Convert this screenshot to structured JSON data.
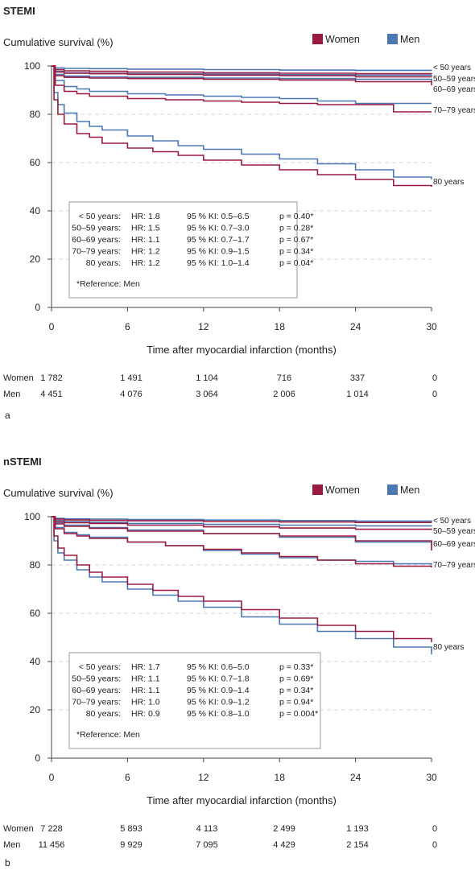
{
  "colors": {
    "women": "#9b1b3f",
    "men": "#4a78b5",
    "axis": "#444444",
    "grid": "#c8c8c8",
    "box": "#9a9a9a"
  },
  "chart_data": [
    {
      "type": "line",
      "panel_letter": "a",
      "title": "STEMI",
      "ylabel": "Cumulative survival (%)",
      "xlabel": "Time after myocardial infarction (months)",
      "xlim": [
        0,
        30
      ],
      "ylim": [
        0,
        100
      ],
      "xticks": [
        "0",
        "6",
        "12",
        "18",
        "24",
        "30"
      ],
      "yticks": [
        "0",
        "20",
        "40",
        "60",
        "80",
        "100"
      ],
      "grid": "dashed horizontal at 20, 40, 60, 80",
      "legend": {
        "position": "top-right",
        "women": "Women",
        "men": "Men"
      },
      "series": [
        {
          "group": "< 50 years",
          "sex": "women",
          "x": [
            0,
            0.3,
            1,
            3,
            6,
            12,
            18,
            24,
            30
          ],
          "y": [
            100,
            98.5,
            98,
            97.8,
            97.5,
            97.2,
            97,
            96.8,
            96.7
          ]
        },
        {
          "group": "< 50 years",
          "sex": "men",
          "x": [
            0,
            0.3,
            1,
            3,
            6,
            12,
            18,
            24,
            30
          ],
          "y": [
            100,
            99.2,
            99,
            98.9,
            98.7,
            98.5,
            98.3,
            98.2,
            98.1
          ]
        },
        {
          "group": "50–59 years",
          "sex": "women",
          "x": [
            0,
            0.3,
            1,
            3,
            6,
            12,
            18,
            24,
            30
          ],
          "y": [
            100,
            97.5,
            97,
            96.8,
            96.5,
            96.2,
            96,
            95.5,
            95.3
          ]
        },
        {
          "group": "50–59 years",
          "sex": "men",
          "x": [
            0,
            0.3,
            1,
            3,
            6,
            12,
            18,
            24,
            30
          ],
          "y": [
            100,
            97.8,
            97.2,
            97,
            96.8,
            96.6,
            96.4,
            96.2,
            96
          ]
        },
        {
          "group": "60–69 years",
          "sex": "women",
          "x": [
            0,
            0.3,
            1,
            3,
            6,
            12,
            18,
            24,
            30
          ],
          "y": [
            100,
            96,
            95.3,
            95,
            94.8,
            94.5,
            94.2,
            93.5,
            92
          ]
        },
        {
          "group": "60–69 years",
          "sex": "men",
          "x": [
            0,
            0.3,
            1,
            3,
            6,
            12,
            18,
            24,
            30
          ],
          "y": [
            100,
            96.5,
            95.8,
            95.5,
            95.3,
            95,
            94.8,
            94.5,
            93.5
          ]
        },
        {
          "group": "70–79 years",
          "sex": "women",
          "x": [
            0,
            0.3,
            1,
            2,
            3,
            6,
            9,
            12,
            15,
            18,
            21,
            24,
            27,
            30
          ],
          "y": [
            100,
            92,
            89.5,
            88.5,
            87.5,
            86.5,
            86,
            85.5,
            85,
            84.5,
            84,
            84,
            81,
            81
          ]
        },
        {
          "group": "70–79 years",
          "sex": "men",
          "x": [
            0,
            0.3,
            1,
            2,
            3,
            6,
            9,
            12,
            15,
            18,
            21,
            24,
            27,
            30
          ],
          "y": [
            100,
            94,
            91.5,
            90.5,
            89.5,
            88.5,
            88,
            87.5,
            87,
            86.5,
            85.5,
            84.5,
            84.5,
            84.5
          ]
        },
        {
          "group": "80 years",
          "sex": "women",
          "x": [
            0,
            0.2,
            0.5,
            1,
            2,
            3,
            4,
            6,
            8,
            10,
            12,
            15,
            18,
            21,
            24,
            27,
            30
          ],
          "y": [
            100,
            86,
            80,
            76,
            72,
            70.5,
            68,
            66,
            64.5,
            63,
            61,
            59,
            57,
            55,
            53,
            50.5,
            50
          ]
        },
        {
          "group": "80 years",
          "sex": "men",
          "x": [
            0,
            0.2,
            0.5,
            1,
            2,
            3,
            4,
            6,
            8,
            10,
            12,
            15,
            18,
            21,
            24,
            27,
            30
          ],
          "y": [
            100,
            89,
            84,
            80.5,
            77,
            75,
            73.5,
            71,
            69,
            67,
            65.5,
            63.5,
            61.5,
            59.5,
            57,
            54,
            53
          ]
        }
      ],
      "end_labels": [
        "< 50 years",
        "50–59 years",
        "60–69 years",
        "70–79 years",
        "80 years"
      ],
      "stats": [
        [
          "< 50 years:",
          "HR: 1.8",
          "95 % KI: 0.5–6.5",
          "p = 0.40*"
        ],
        [
          "50–59 years:",
          "HR: 1.5",
          "95 % KI: 0.7–3.0",
          "p = 0.28*"
        ],
        [
          "60–69 years:",
          "HR: 1.1",
          "95 % KI: 0.7–1.7",
          "p = 0.67*"
        ],
        [
          "70–79 years:",
          "HR: 1.2",
          "95 % KI: 0.9–1.5",
          "p = 0.34*"
        ],
        [
          "80 years:",
          "HR: 1.2",
          "95 % KI: 1.0–1.4",
          "p = 0.04*"
        ]
      ],
      "stats_note": "*Reference: Men",
      "risk_table": {
        "Women": [
          "1 782",
          "1 491",
          "1 104",
          "716",
          "337",
          "0"
        ],
        "Men": [
          "4 451",
          "4 076",
          "3 064",
          "2 006",
          "1 014",
          "0"
        ]
      }
    },
    {
      "type": "line",
      "panel_letter": "b",
      "title": "nSTEMI",
      "ylabel": "Cumulative survival (%)",
      "xlabel": "Time after myocardial infarction (months)",
      "xlim": [
        0,
        30
      ],
      "ylim": [
        0,
        100
      ],
      "xticks": [
        "0",
        "6",
        "12",
        "18",
        "24",
        "30"
      ],
      "yticks": [
        "0",
        "20",
        "40",
        "60",
        "80",
        "100"
      ],
      "grid": "dashed horizontal at 20, 40, 60, 80",
      "legend": {
        "position": "top-right",
        "women": "Women",
        "men": "Men"
      },
      "series": [
        {
          "group": "< 50 years",
          "sex": "women",
          "x": [
            0,
            0.3,
            1,
            3,
            6,
            12,
            18,
            24,
            30
          ],
          "y": [
            100,
            99,
            98.7,
            98.5,
            98.3,
            98,
            97.8,
            97.6,
            97.5
          ]
        },
        {
          "group": "< 50 years",
          "sex": "men",
          "x": [
            0,
            0.3,
            1,
            3,
            6,
            12,
            18,
            24,
            30
          ],
          "y": [
            100,
            99.3,
            99.1,
            99,
            98.8,
            98.6,
            98.4,
            98.2,
            98
          ]
        },
        {
          "group": "50–59 years",
          "sex": "women",
          "x": [
            0,
            0.3,
            1,
            3,
            6,
            12,
            18,
            24,
            30
          ],
          "y": [
            100,
            98,
            97.5,
            97.2,
            96.5,
            95.8,
            95.3,
            94.8,
            94.5
          ]
        },
        {
          "group": "50–59 years",
          "sex": "men",
          "x": [
            0,
            0.3,
            1,
            3,
            6,
            12,
            18,
            24,
            30
          ],
          "y": [
            100,
            98.5,
            98,
            97.7,
            97.2,
            96.8,
            96.5,
            96.2,
            96
          ]
        },
        {
          "group": "60–69 years",
          "sex": "women",
          "x": [
            0,
            0.3,
            1,
            3,
            6,
            12,
            18,
            24,
            30
          ],
          "y": [
            100,
            97,
            96,
            95.2,
            94,
            93,
            92,
            90,
            86
          ]
        },
        {
          "group": "60–69 years",
          "sex": "men",
          "x": [
            0,
            0.3,
            1,
            3,
            6,
            12,
            18,
            24,
            30
          ],
          "y": [
            100,
            97.5,
            96.5,
            95.5,
            94.5,
            93,
            91.5,
            89.5,
            88
          ]
        },
        {
          "group": "70–79 years",
          "sex": "women",
          "x": [
            0,
            0.3,
            1,
            2,
            3,
            6,
            9,
            12,
            15,
            18,
            21,
            24,
            27,
            30
          ],
          "y": [
            100,
            95,
            93,
            92,
            91,
            89.5,
            88,
            86.5,
            85,
            83.5,
            82,
            80.5,
            79.5,
            79
          ]
        },
        {
          "group": "70–79 years",
          "sex": "men",
          "x": [
            0,
            0.3,
            1,
            2,
            3,
            6,
            9,
            12,
            15,
            18,
            21,
            24,
            27,
            30
          ],
          "y": [
            100,
            95.5,
            93.5,
            92.5,
            91.5,
            89.5,
            88,
            86,
            84.5,
            83,
            82,
            81.5,
            80.5,
            80
          ]
        },
        {
          "group": "80 years",
          "sex": "women",
          "x": [
            0,
            0.2,
            0.5,
            1,
            2,
            3,
            4,
            6,
            8,
            10,
            12,
            15,
            18,
            21,
            24,
            27,
            30
          ],
          "y": [
            100,
            92,
            87,
            84,
            80,
            77,
            75,
            72,
            69.5,
            67,
            65,
            61.5,
            58,
            55,
            52.5,
            49.5,
            48
          ]
        },
        {
          "group": "80 years",
          "sex": "men",
          "x": [
            0,
            0.2,
            0.5,
            1,
            2,
            3,
            4,
            6,
            8,
            10,
            12,
            15,
            18,
            21,
            24,
            27,
            30
          ],
          "y": [
            100,
            90,
            85,
            82,
            78,
            75,
            73,
            70,
            67.5,
            65,
            62.5,
            58.5,
            55.5,
            52.5,
            49.5,
            46,
            43
          ]
        }
      ],
      "end_labels": [
        "< 50 years",
        "50–59 years",
        "60–69 years",
        "70–79 years",
        "80 years"
      ],
      "stats": [
        [
          "< 50 years:",
          "HR: 1.7",
          "95 % KI: 0.6–5.0",
          "p = 0.33*"
        ],
        [
          "50–59 years:",
          "HR: 1.1",
          "95 % KI: 0.7–1.8",
          "p = 0.69*"
        ],
        [
          "60–69 years:",
          "HR: 1.1",
          "95 % KI: 0.9–1.4",
          "p = 0.34*"
        ],
        [
          "70–79 years:",
          "HR: 1.0",
          "95 % KI: 0.9–1.2",
          "p = 0.94*"
        ],
        [
          "80 years:",
          "HR: 0.9",
          "95 % KI: 0.8–1.0",
          "p = 0.004*"
        ]
      ],
      "stats_note": "*Reference: Men",
      "risk_table": {
        "Women": [
          "7 228",
          "5 893",
          "4 113",
          "2 499",
          "1 193",
          "0"
        ],
        "Men": [
          "11 456",
          "9 929",
          "7 095",
          "4 429",
          "2 154",
          "0"
        ]
      }
    }
  ]
}
